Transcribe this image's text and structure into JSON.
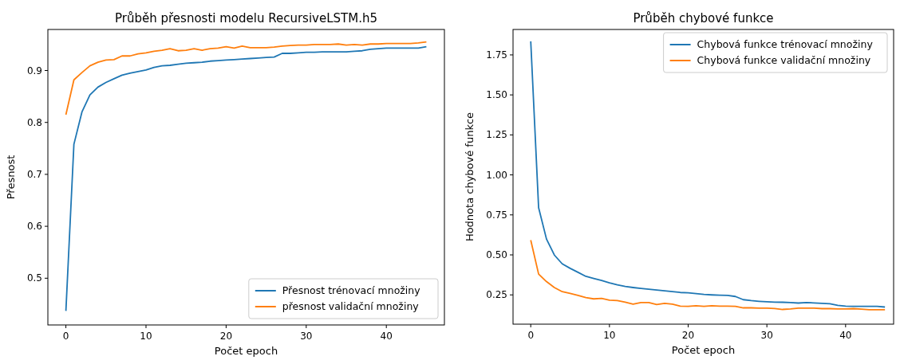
{
  "chart_data": [
    {
      "type": "line",
      "title": "Průběh přesnosti modelu  RecursiveLSTM.h5",
      "xlabel": "Počet epoch",
      "ylabel": "Přesnost",
      "x": [
        0,
        1,
        2,
        3,
        4,
        5,
        6,
        7,
        8,
        9,
        10,
        11,
        12,
        13,
        14,
        15,
        16,
        17,
        18,
        19,
        20,
        21,
        22,
        23,
        24,
        25,
        26,
        27,
        28,
        29,
        30,
        31,
        32,
        33,
        34,
        35,
        36,
        37,
        38,
        39,
        40,
        41,
        42,
        43,
        44,
        45
      ],
      "series": [
        {
          "name": "Přesnost trénovací množiny",
          "color": "#1f77b4",
          "values": [
            0.437,
            0.758,
            0.82,
            0.853,
            0.868,
            0.877,
            0.884,
            0.891,
            0.895,
            0.898,
            0.901,
            0.906,
            0.909,
            0.91,
            0.912,
            0.914,
            0.915,
            0.916,
            0.918,
            0.919,
            0.92,
            0.921,
            0.922,
            0.923,
            0.924,
            0.925,
            0.926,
            0.933,
            0.933,
            0.934,
            0.935,
            0.935,
            0.936,
            0.936,
            0.936,
            0.936,
            0.937,
            0.938,
            0.941,
            0.942,
            0.943,
            0.943,
            0.943,
            0.943,
            0.943,
            0.946
          ]
        },
        {
          "name": "přesnost validační množiny",
          "color": "#ff7f0e",
          "values": [
            0.815,
            0.882,
            0.896,
            0.909,
            0.916,
            0.92,
            0.921,
            0.928,
            0.928,
            0.932,
            0.934,
            0.937,
            0.939,
            0.942,
            0.938,
            0.939,
            0.942,
            0.939,
            0.942,
            0.943,
            0.946,
            0.943,
            0.947,
            0.944,
            0.944,
            0.944,
            0.945,
            0.947,
            0.948,
            0.949,
            0.949,
            0.95,
            0.95,
            0.95,
            0.951,
            0.949,
            0.95,
            0.949,
            0.951,
            0.951,
            0.952,
            0.952,
            0.952,
            0.952,
            0.953,
            0.955
          ]
        }
      ],
      "xlim": [
        -2.25,
        47.25
      ],
      "ylim": [
        0.41,
        0.979
      ],
      "xticks": [
        0,
        10,
        20,
        30,
        40
      ],
      "yticks": [
        0.5,
        0.6,
        0.7,
        0.8,
        0.9
      ],
      "legend": "bottom right",
      "grid": false
    },
    {
      "type": "line",
      "title": "Průběh chybové funkce",
      "xlabel": "Počet epoch",
      "ylabel": "Hodnota chybové funkce",
      "x": [
        0,
        1,
        2,
        3,
        4,
        5,
        6,
        7,
        8,
        9,
        10,
        11,
        12,
        13,
        14,
        15,
        16,
        17,
        18,
        19,
        20,
        21,
        22,
        23,
        24,
        25,
        26,
        27,
        28,
        29,
        30,
        31,
        32,
        33,
        34,
        35,
        36,
        37,
        38,
        39,
        40,
        41,
        42,
        43,
        44,
        45
      ],
      "series": [
        {
          "name": "Chybová funkce trénovací množiny",
          "color": "#1f77b4",
          "values": [
            1.835,
            0.795,
            0.599,
            0.499,
            0.444,
            0.416,
            0.391,
            0.366,
            0.353,
            0.34,
            0.325,
            0.313,
            0.303,
            0.296,
            0.29,
            0.285,
            0.28,
            0.275,
            0.27,
            0.265,
            0.263,
            0.258,
            0.253,
            0.25,
            0.248,
            0.247,
            0.24,
            0.22,
            0.214,
            0.21,
            0.207,
            0.205,
            0.204,
            0.202,
            0.199,
            0.202,
            0.2,
            0.197,
            0.195,
            0.185,
            0.18,
            0.178,
            0.178,
            0.178,
            0.178,
            0.174
          ]
        },
        {
          "name": "Chybová funkce validační množiny",
          "color": "#ff7f0e",
          "values": [
            0.592,
            0.38,
            0.333,
            0.296,
            0.27,
            0.259,
            0.247,
            0.233,
            0.225,
            0.228,
            0.217,
            0.214,
            0.204,
            0.192,
            0.202,
            0.202,
            0.19,
            0.197,
            0.192,
            0.18,
            0.178,
            0.182,
            0.178,
            0.182,
            0.18,
            0.18,
            0.178,
            0.169,
            0.169,
            0.167,
            0.167,
            0.165,
            0.159,
            0.162,
            0.167,
            0.167,
            0.167,
            0.164,
            0.164,
            0.162,
            0.162,
            0.164,
            0.161,
            0.157,
            0.157,
            0.157
          ]
        }
      ],
      "xlim": [
        -2.25,
        46.1
      ],
      "ylim": [
        0.067,
        1.909
      ],
      "xticks": [
        0,
        10,
        20,
        30,
        40
      ],
      "yticks": [
        0.25,
        {
          "value": 0.5,
          "label": "0.50"
        },
        0.75,
        {
          "value": 1,
          "label": "1.00"
        },
        1.25,
        {
          "value": 1.5,
          "label": "1.50"
        },
        1.75
      ],
      "legend": "top right",
      "grid": false
    }
  ]
}
